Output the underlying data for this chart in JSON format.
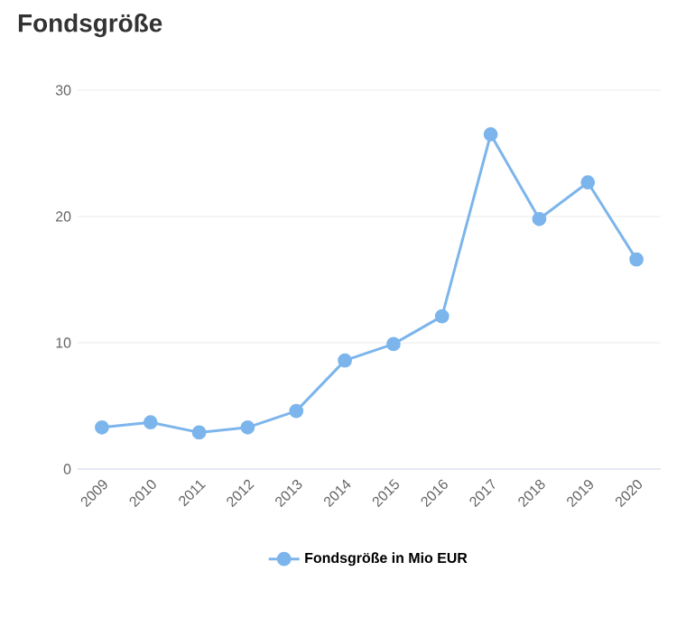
{
  "chart_data": {
    "type": "line",
    "title": "Fondsgröße",
    "categories": [
      "2009",
      "2010",
      "2011",
      "2012",
      "2013",
      "2014",
      "2015",
      "2016",
      "2017",
      "2018",
      "2019",
      "2020"
    ],
    "series": [
      {
        "name": "Fondsgröße in Mio EUR",
        "color": "#7cb5ec",
        "values": [
          3.3,
          3.7,
          2.9,
          3.3,
          4.6,
          8.6,
          9.9,
          12.1,
          26.5,
          19.8,
          22.7,
          16.6
        ]
      }
    ],
    "ylim": [
      0,
      30
    ],
    "yticks": [
      0,
      10,
      20,
      30
    ],
    "grid": "y",
    "legend": "bottom",
    "marker": "circle",
    "line_style": "solid"
  }
}
